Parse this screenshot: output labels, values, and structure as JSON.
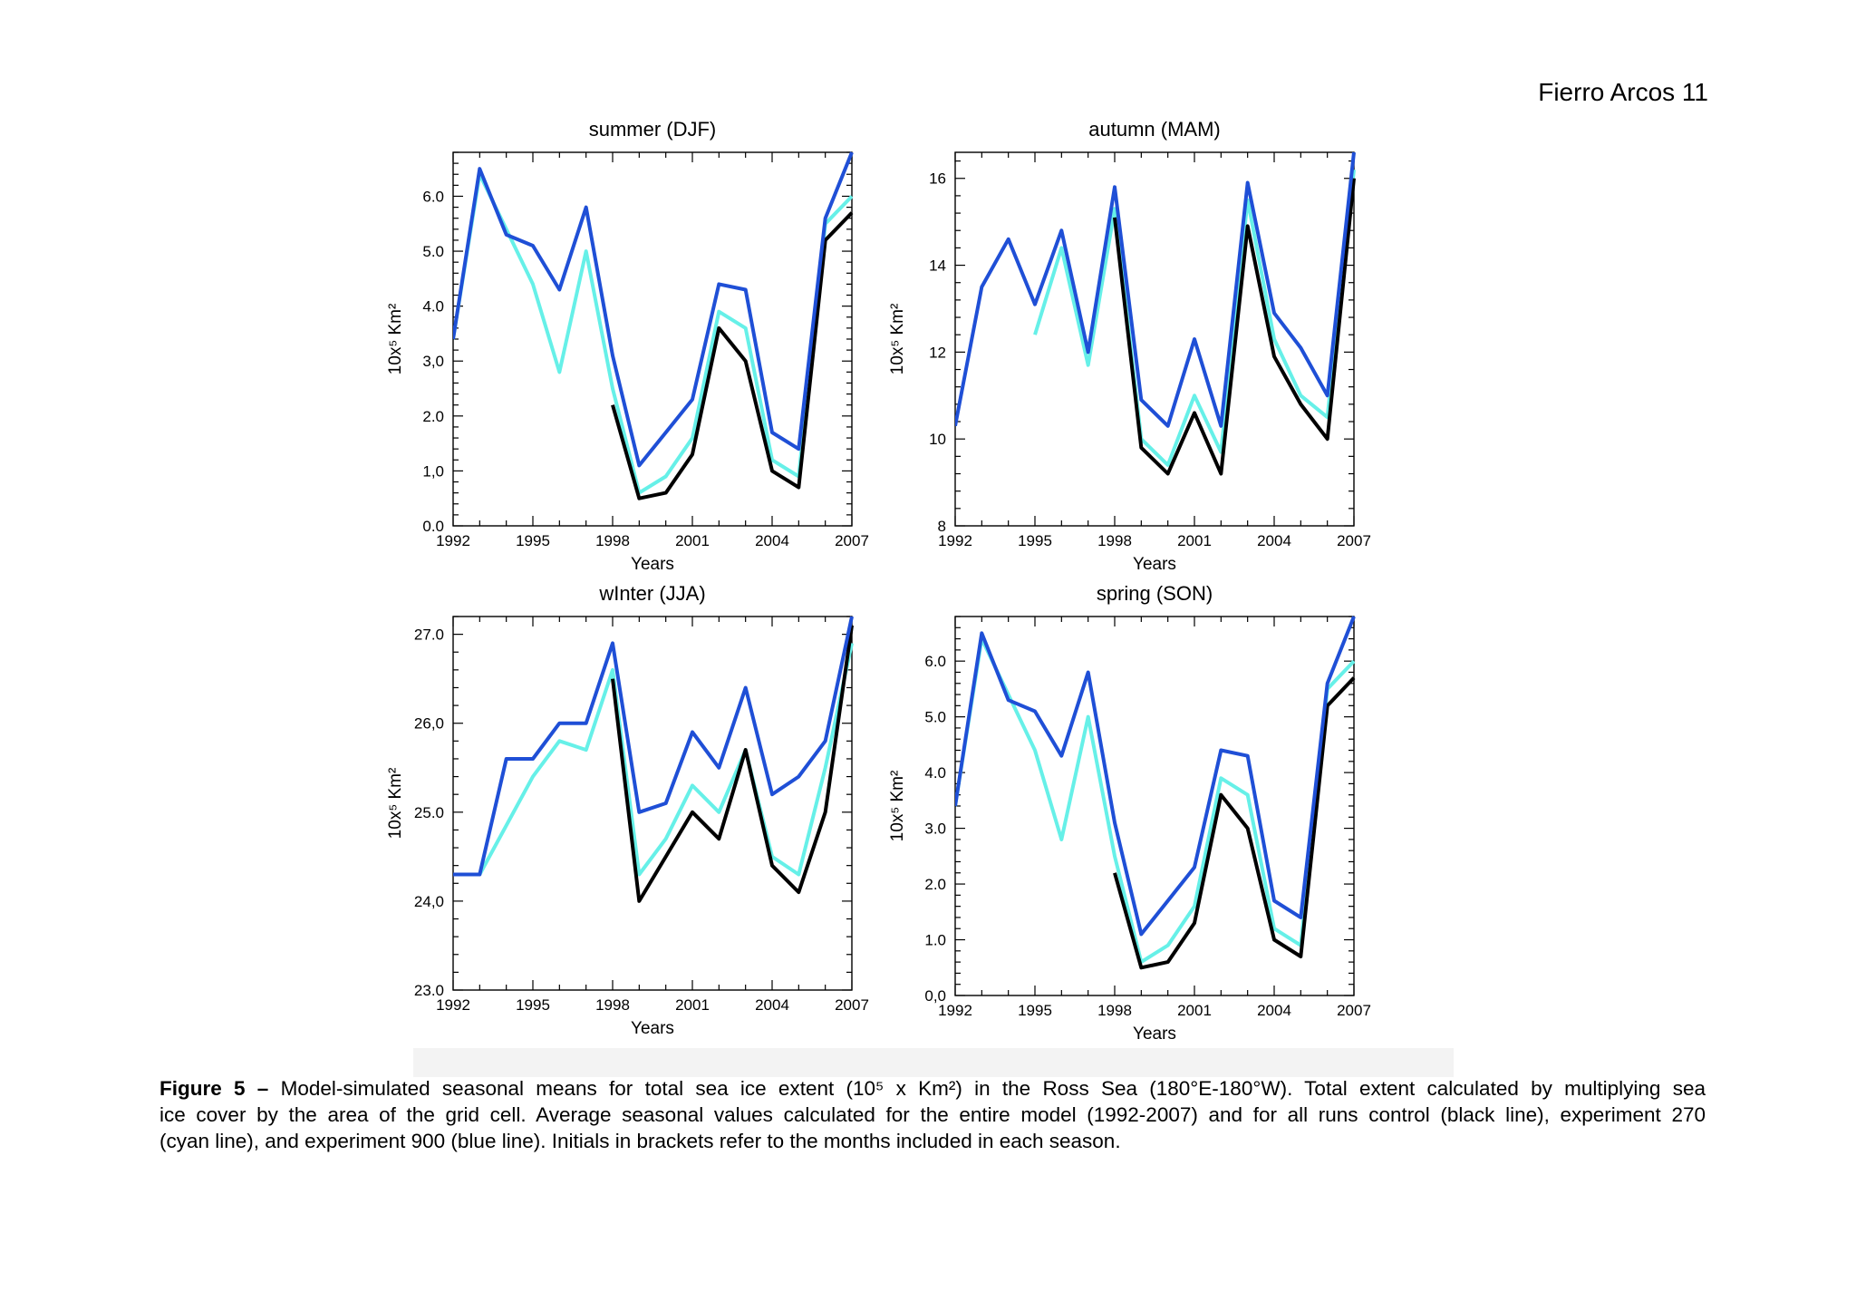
{
  "header": {
    "text": "Fierro Arcos 11"
  },
  "caption": {
    "label": "Figure 5 –",
    "line1": "Model-simulated seasonal means for total sea ice extent (10⁵ x Km²) in the Ross Sea (180°E-180°W). Total extent calculated by multiplying sea",
    "line2": "ice cover by the area of the grid cell. Average seasonal values calculated for the entire model (1992-2007) and for all runs control (black line), experiment 270",
    "line3": "(cyan line), and experiment 900 (blue line). Initials in brackets refer to the months included in each season."
  },
  "colors": {
    "control": "#000000",
    "exp270": "#66f0e8",
    "exp900": "#1f4fd6"
  },
  "chart_data": [
    {
      "id": "summer",
      "type": "line",
      "title": "summer (DJF)",
      "xlabel": "Years",
      "ylabel": "10x⁵ Km²",
      "xlim": [
        1992,
        2007
      ],
      "ylim": [
        0,
        6.8
      ],
      "xticks": [
        "1992",
        "1995",
        "1998",
        "2001",
        "2004",
        "2007"
      ],
      "yticks": [
        {
          "v": 0,
          "label": "0.0"
        },
        {
          "v": 1,
          "label": "1,0"
        },
        {
          "v": 2,
          "label": "2.0"
        },
        {
          "v": 3,
          "label": "3,0"
        },
        {
          "v": 4,
          "label": "4.0"
        },
        {
          "v": 5,
          "label": "5.0"
        },
        {
          "v": 6,
          "label": "6.0"
        }
      ],
      "series": [
        {
          "key": "exp900",
          "x": [
            1992,
            1993,
            1994,
            1995,
            1996,
            1997,
            1998,
            1999,
            2000,
            2001,
            2002,
            2003,
            2004,
            2005,
            2006,
            2007
          ],
          "y": [
            3.4,
            6.5,
            5.3,
            5.1,
            4.3,
            5.8,
            3.1,
            1.1,
            1.7,
            2.3,
            4.4,
            4.3,
            1.7,
            1.4,
            5.6,
            6.8
          ]
        },
        {
          "key": "exp270",
          "x": [
            1992,
            1993,
            1995,
            1996,
            1997,
            1998,
            1999,
            2000,
            2001,
            2002,
            2003,
            2004,
            2005,
            2006,
            2007
          ],
          "y": [
            3.4,
            6.4,
            4.4,
            2.8,
            5.0,
            2.5,
            0.6,
            0.9,
            1.6,
            3.9,
            3.6,
            1.2,
            0.9,
            5.5,
            6.0
          ]
        },
        {
          "key": "control",
          "x": [
            1998,
            1999,
            2000,
            2001,
            2002,
            2003,
            2004,
            2005,
            2006,
            2007
          ],
          "y": [
            2.2,
            0.5,
            0.6,
            1.3,
            3.6,
            3.0,
            1.0,
            0.7,
            5.2,
            5.7
          ]
        }
      ]
    },
    {
      "id": "autumn",
      "type": "line",
      "title": "autumn (MAM)",
      "xlabel": "Years",
      "ylabel": "10x⁵ Km²",
      "xlim": [
        1992,
        2007
      ],
      "ylim": [
        8,
        16.6
      ],
      "xticks": [
        "1992",
        "1995",
        "1998",
        "2001",
        "2004",
        "2007"
      ],
      "yticks": [
        {
          "v": 8,
          "label": "8"
        },
        {
          "v": 10,
          "label": "10"
        },
        {
          "v": 12,
          "label": "12"
        },
        {
          "v": 14,
          "label": "14"
        },
        {
          "v": 16,
          "label": "16"
        }
      ],
      "series": [
        {
          "key": "exp900",
          "x": [
            1992,
            1993,
            1994,
            1995,
            1996,
            1997,
            1998,
            1999,
            2000,
            2001,
            2002,
            2003,
            2004,
            2005,
            2006,
            2007
          ],
          "y": [
            10.3,
            13.5,
            14.6,
            13.1,
            14.8,
            12.0,
            15.8,
            10.9,
            10.3,
            12.3,
            10.3,
            15.9,
            12.9,
            12.1,
            11.0,
            16.6
          ]
        },
        {
          "key": "exp270",
          "x": [
            1995,
            1996,
            1997,
            1998,
            1999,
            2000,
            2001,
            2002,
            2003,
            2004,
            2005,
            2006,
            2007
          ],
          "y": [
            12.4,
            14.4,
            11.7,
            15.3,
            10.0,
            9.4,
            11.0,
            9.7,
            15.5,
            12.3,
            11.0,
            10.5,
            16.2
          ]
        },
        {
          "key": "control",
          "x": [
            1998,
            1999,
            2000,
            2001,
            2002,
            2003,
            2004,
            2005,
            2006,
            2007
          ],
          "y": [
            15.1,
            9.8,
            9.2,
            10.6,
            9.2,
            14.9,
            11.9,
            10.8,
            10.0,
            16.0
          ]
        }
      ]
    },
    {
      "id": "winter",
      "type": "line",
      "title": "wInter (JJA)",
      "xlabel": "Years",
      "ylabel": "10x⁵ Km²",
      "xlim": [
        1992,
        2007
      ],
      "ylim": [
        23,
        27.2
      ],
      "xticks": [
        "1992",
        "1995",
        "1998",
        "2001",
        "2004",
        "2007"
      ],
      "yticks": [
        {
          "v": 23,
          "label": "23.0"
        },
        {
          "v": 24,
          "label": "24,0"
        },
        {
          "v": 25,
          "label": "25.0"
        },
        {
          "v": 26,
          "label": "26,0"
        },
        {
          "v": 27,
          "label": "27.0"
        }
      ],
      "series": [
        {
          "key": "exp900",
          "x": [
            1992,
            1993,
            1994,
            1995,
            1996,
            1997,
            1998,
            1999,
            2000,
            2001,
            2002,
            2003,
            2004,
            2005,
            2006,
            2007
          ],
          "y": [
            24.3,
            24.3,
            25.6,
            25.6,
            26.0,
            26.0,
            26.9,
            25.0,
            25.1,
            25.9,
            25.5,
            26.4,
            25.2,
            25.4,
            25.8,
            27.2
          ]
        },
        {
          "key": "exp270",
          "x": [
            1992,
            1993,
            1995,
            1996,
            1997,
            1998,
            1999,
            2000,
            2001,
            2002,
            2003,
            2004,
            2005,
            2006,
            2007
          ],
          "y": [
            24.3,
            24.3,
            25.4,
            25.8,
            25.7,
            26.6,
            24.3,
            24.7,
            25.3,
            25.0,
            25.7,
            24.5,
            24.3,
            25.5,
            26.9
          ]
        },
        {
          "key": "control",
          "x": [
            1998,
            1999,
            2000,
            2001,
            2002,
            2003,
            2004,
            2005,
            2006,
            2007
          ],
          "y": [
            26.5,
            24.0,
            24.5,
            25.0,
            24.7,
            25.7,
            24.4,
            24.1,
            25.0,
            27.1
          ]
        }
      ]
    },
    {
      "id": "spring",
      "type": "line",
      "title": "spring (SON)",
      "xlabel": "Years",
      "ylabel": "10x⁵ Km²",
      "xlim": [
        1992,
        2007
      ],
      "ylim": [
        0,
        6.8
      ],
      "xticks": [
        "1992",
        "1995",
        "1998",
        "2001",
        "2004",
        "2007"
      ],
      "yticks": [
        {
          "v": 0,
          "label": "0,0"
        },
        {
          "v": 1,
          "label": "1.0"
        },
        {
          "v": 2,
          "label": "2.0"
        },
        {
          "v": 3,
          "label": "3.0"
        },
        {
          "v": 4,
          "label": "4.0"
        },
        {
          "v": 5,
          "label": "5.0"
        },
        {
          "v": 6,
          "label": "6.0"
        }
      ],
      "series": [
        {
          "key": "exp900",
          "x": [
            1992,
            1993,
            1994,
            1995,
            1996,
            1997,
            1998,
            1999,
            2000,
            2001,
            2002,
            2003,
            2004,
            2005,
            2006,
            2007
          ],
          "y": [
            3.4,
            6.5,
            5.3,
            5.1,
            4.3,
            5.8,
            3.1,
            1.1,
            1.7,
            2.3,
            4.4,
            4.3,
            1.7,
            1.4,
            5.6,
            6.8
          ]
        },
        {
          "key": "exp270",
          "x": [
            1992,
            1993,
            1995,
            1996,
            1997,
            1998,
            1999,
            2000,
            2001,
            2002,
            2003,
            2004,
            2005,
            2006,
            2007
          ],
          "y": [
            3.4,
            6.4,
            4.4,
            2.8,
            5.0,
            2.5,
            0.6,
            0.9,
            1.6,
            3.9,
            3.6,
            1.2,
            0.9,
            5.5,
            6.0
          ]
        },
        {
          "key": "control",
          "x": [
            1998,
            1999,
            2000,
            2001,
            2002,
            2003,
            2004,
            2005,
            2006,
            2007
          ],
          "y": [
            2.2,
            0.5,
            0.6,
            1.3,
            3.6,
            3.0,
            1.0,
            0.7,
            5.2,
            5.7
          ]
        }
      ]
    }
  ]
}
